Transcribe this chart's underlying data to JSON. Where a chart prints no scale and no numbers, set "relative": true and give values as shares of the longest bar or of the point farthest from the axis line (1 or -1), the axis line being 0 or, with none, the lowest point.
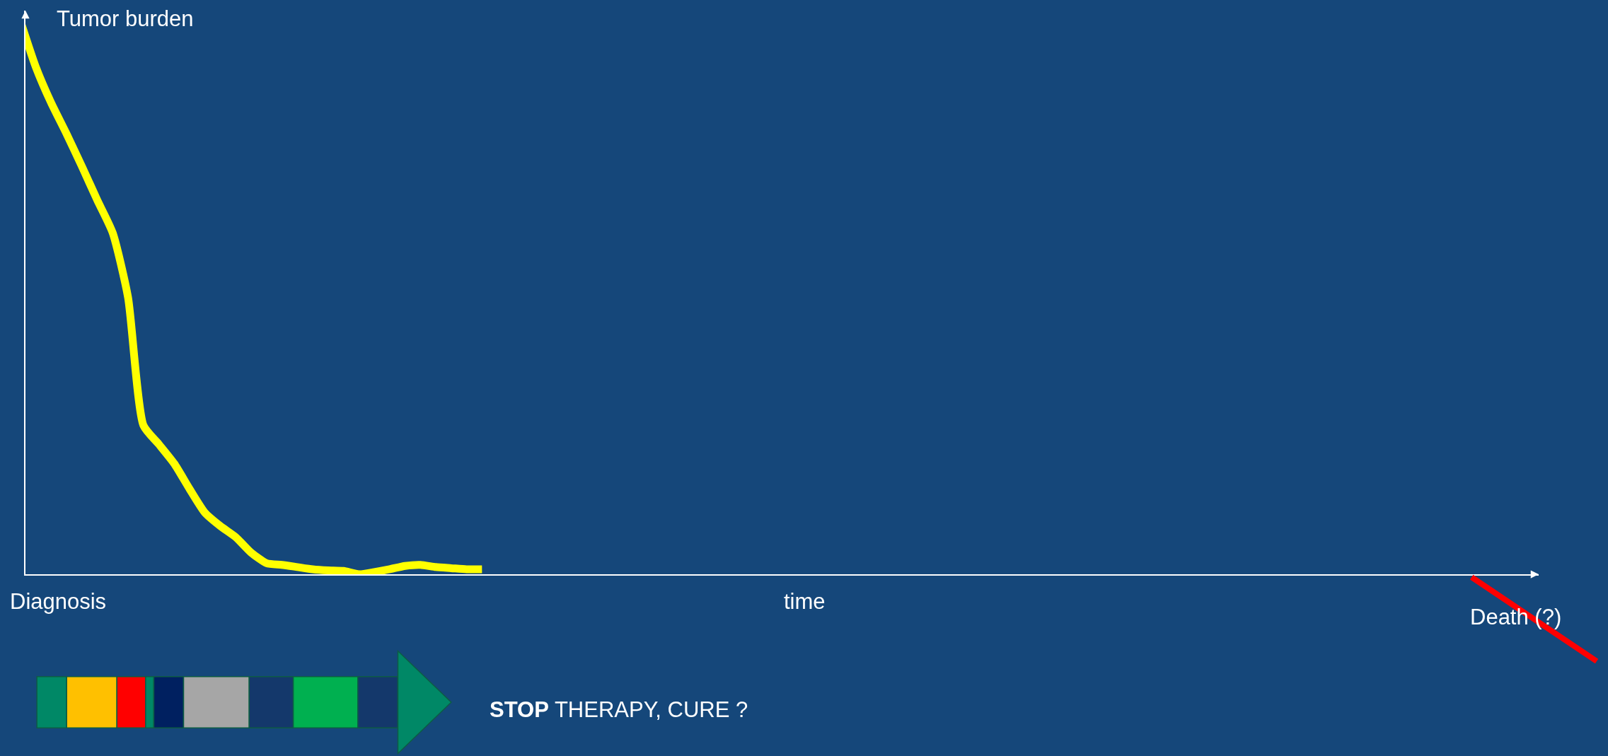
{
  "chart_data": {
    "type": "line",
    "relative": true,
    "grid": false,
    "legend": false,
    "marker": "none",
    "ylabel": "Tumor burden",
    "annotations": [
      "Diagnosis",
      "time",
      "Death (?)",
      "STOP THERAPY, CURE ?"
    ],
    "categories": [
      null,
      null,
      null,
      null,
      null,
      null,
      null,
      null,
      null,
      null,
      null,
      null,
      null,
      null,
      null,
      null,
      null,
      null,
      null,
      null,
      null,
      null,
      null,
      null,
      null,
      null,
      null,
      null,
      null,
      null,
      null
    ],
    "color": "#ffff00",
    "values": [
      1.0,
      0.917,
      0.852,
      0.796,
      0.737,
      0.676,
      0.617,
      0.5,
      0.269,
      0.235,
      0.2,
      0.154,
      0.111,
      0.087,
      0.067,
      0.039,
      0.02,
      0.017,
      0.013,
      0.009,
      0.007,
      0.006,
      0,
      0.004,
      0.009,
      0.015,
      0.017,
      0.013,
      0.011,
      0.009,
      0.009
    ]
  }
}
